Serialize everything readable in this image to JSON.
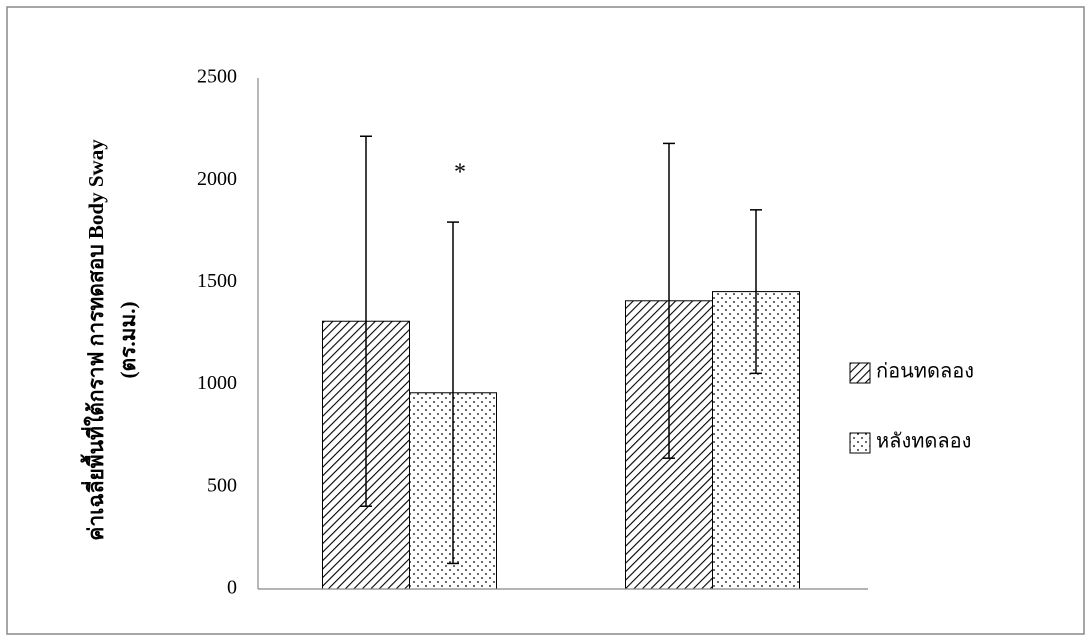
{
  "chart_data": {
    "type": "bar",
    "y_label": [
      "ค่าเฉลี่ยพื้นที่ใต้กราฟ การทดสอบ Body Sway",
      "(ตร.มม.)"
    ],
    "annotations": [
      "*"
    ],
    "categories": [
      null,
      null
    ],
    "series": [
      {
        "name": "ก่อนทดลอง",
        "color": "#000000",
        "values": [
          1310,
          1410
        ],
        "errors": [
          905,
          770
        ]
      },
      {
        "name": "หลังทดลอง",
        "color": "#000000",
        "values": [
          960,
          1455
        ],
        "errors": [
          835,
          400
        ]
      }
    ],
    "ylim": [
      0,
      2500
    ],
    "yticks": [
      0,
      500,
      1000,
      1500,
      2000,
      2500
    ],
    "grid": false,
    "legend": "right"
  }
}
